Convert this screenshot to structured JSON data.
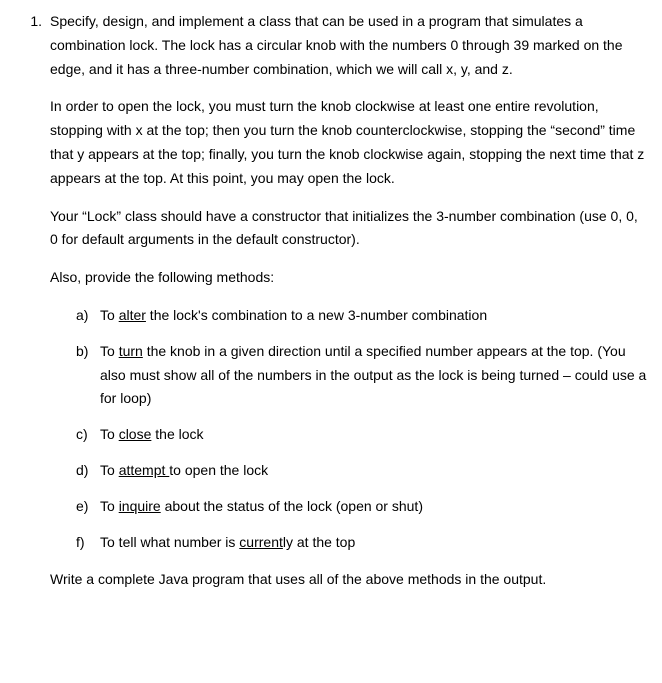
{
  "question_number": "1.",
  "paragraphs": [
    "Specify, design, and implement a class that can be used in a program that simulates a combination lock. The lock has a circular knob with the numbers 0 through 39 marked on the edge, and it has a three-number combination, which we will call x, y, and z.",
    "In order to open the lock, you must turn the knob clockwise at least one entire revolution, stopping with x at the top; then you turn the knob counterclockwise, stopping the “second” time that y appears at the top; finally, you turn the knob clockwise again, stopping the next time that z appears at the top. At this point, you may open the lock.",
    "Your “Lock” class should have a constructor that initializes the 3-number combination (use 0, 0, 0 for default arguments in the default constructor).",
    "Also, provide the following methods:"
  ],
  "methods": [
    {
      "label": "a)",
      "pre": "To ",
      "key": "alter",
      "post": " the lock's combination to a new 3-number combination"
    },
    {
      "label": "b)",
      "pre": "To ",
      "key": "turn",
      "post": " the knob in a given direction until a specified number appears at the top. (You also must show all of the numbers in the output as the lock is being turned – could use a for loop)"
    },
    {
      "label": "c)",
      "pre": "To ",
      "key": "close",
      "post": " the lock"
    },
    {
      "label": "d)",
      "pre": "To ",
      "key": "attempt ",
      "post": "to open the lock"
    },
    {
      "label": "e)",
      "pre": "To ",
      "key": "inquire",
      "post": " about the status of the lock (open or shut)"
    },
    {
      "label": "f)",
      "pre": "To tell what number is ",
      "key": "current",
      "post": "ly at the top"
    }
  ],
  "closing": "Write a complete Java program that uses all of the above methods in the output."
}
